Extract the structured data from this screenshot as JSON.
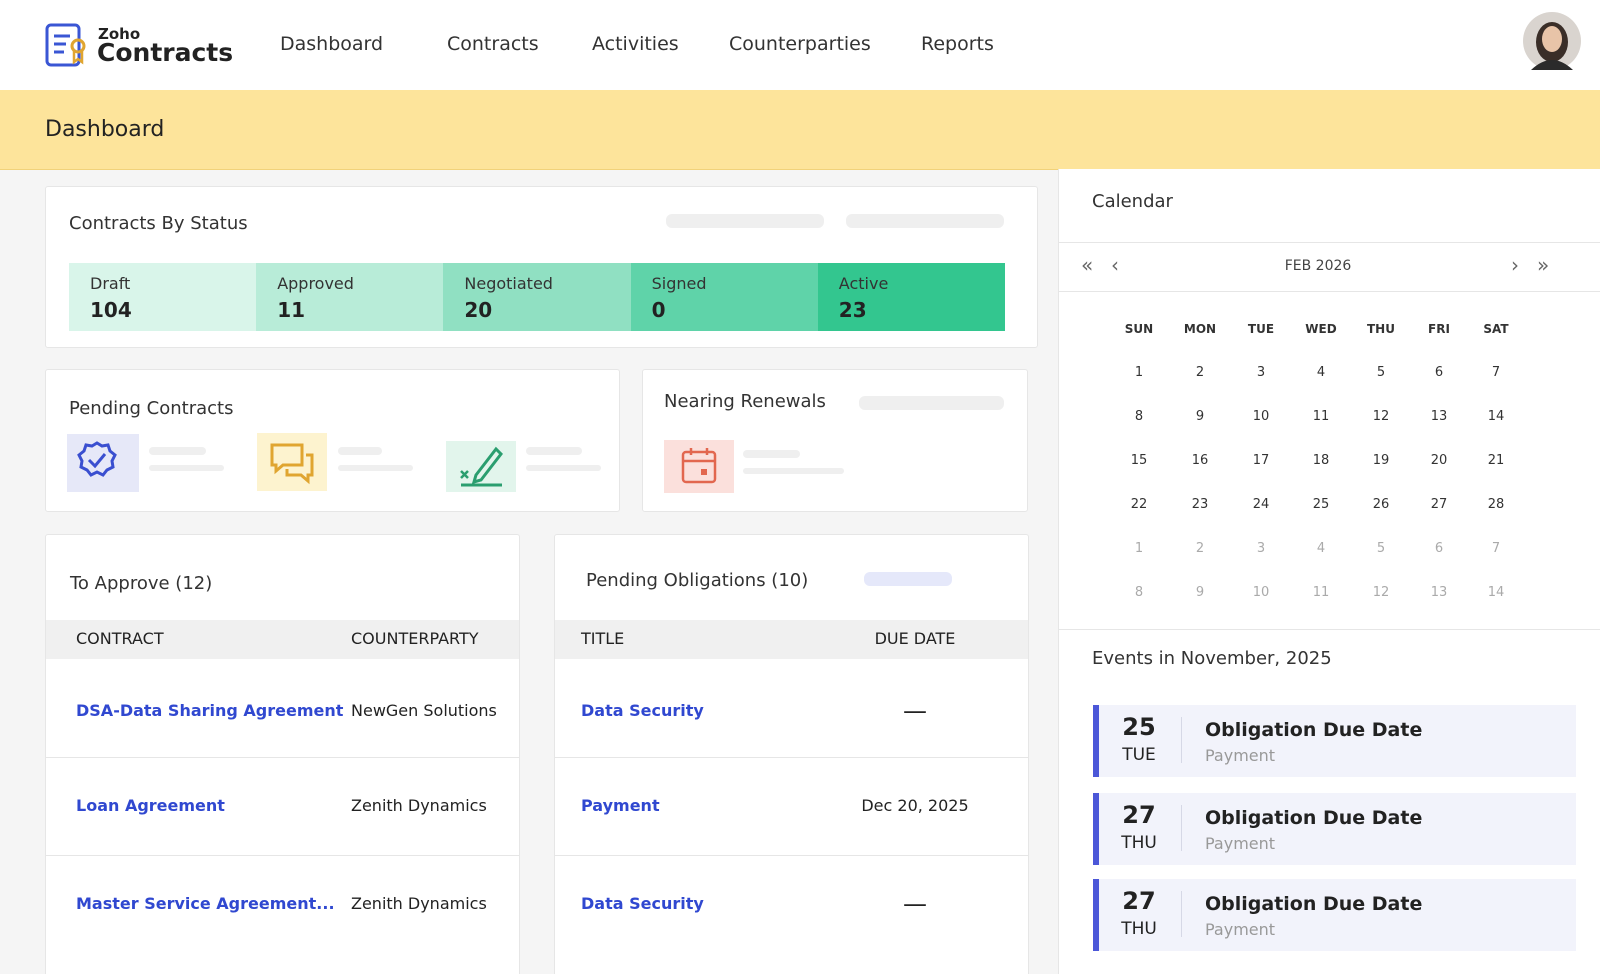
{
  "header": {
    "logo_small": "Zoho",
    "logo_main": "Contracts",
    "nav": [
      "Dashboard",
      "Contracts",
      "Activities",
      "Counterparties",
      "Reports"
    ]
  },
  "page_title": "Dashboard",
  "contracts_by_status": {
    "title": "Contracts By Status",
    "statuses": [
      {
        "label": "Draft",
        "count": 104,
        "color": "#d9f5ea"
      },
      {
        "label": "Approved",
        "count": 11,
        "color": "#b8ecd8"
      },
      {
        "label": "Negotiated",
        "count": 20,
        "color": "#90e0c2"
      },
      {
        "label": "Signed",
        "count": 0,
        "color": "#5fd3a9"
      },
      {
        "label": "Active",
        "count": 23,
        "color": "#33c68f"
      }
    ]
  },
  "pending_contracts": {
    "title": "Pending Contracts"
  },
  "nearing_renewals": {
    "title": "Nearing Renewals"
  },
  "to_approve": {
    "title": "To Approve (12)",
    "columns": [
      "CONTRACT",
      "COUNTERPARTY"
    ],
    "rows": [
      [
        "DSA-Data Sharing Agreement",
        "NewGen Solutions"
      ],
      [
        "Loan Agreement",
        "Zenith Dynamics"
      ],
      [
        "Master Service Agreement...",
        "Zenith Dynamics"
      ]
    ]
  },
  "pending_obligations": {
    "title": "Pending Obligations (10)",
    "columns": [
      "TITLE",
      "DUE DATE"
    ],
    "rows": [
      [
        "Data Security",
        "—"
      ],
      [
        "Payment",
        "Dec 20, 2025"
      ],
      [
        "Data Security",
        "—"
      ]
    ]
  },
  "calendar": {
    "title": "Calendar",
    "month": "FEB 2026",
    "weekdays": [
      "SUN",
      "MON",
      "TUE",
      "WED",
      "THU",
      "FRI",
      "SAT"
    ],
    "weeks": [
      [
        1,
        2,
        3,
        4,
        5,
        6,
        7
      ],
      [
        8,
        9,
        10,
        11,
        12,
        13,
        14
      ],
      [
        15,
        16,
        17,
        18,
        19,
        20,
        21
      ],
      [
        22,
        23,
        24,
        25,
        26,
        27,
        28
      ]
    ],
    "next_month_weeks": [
      [
        1,
        2,
        3,
        4,
        5,
        6,
        7
      ],
      [
        8,
        9,
        10,
        11,
        12,
        13,
        14
      ]
    ]
  },
  "events": {
    "title": "Events in November, 2025",
    "items": [
      {
        "day": 25,
        "weekday": "TUE",
        "title": "Obligation Due Date",
        "subtitle": "Payment"
      },
      {
        "day": 27,
        "weekday": "THU",
        "title": "Obligation Due Date",
        "subtitle": "Payment"
      },
      {
        "day": 27,
        "weekday": "THU",
        "title": "Obligation Due Date",
        "subtitle": "Payment"
      }
    ]
  }
}
